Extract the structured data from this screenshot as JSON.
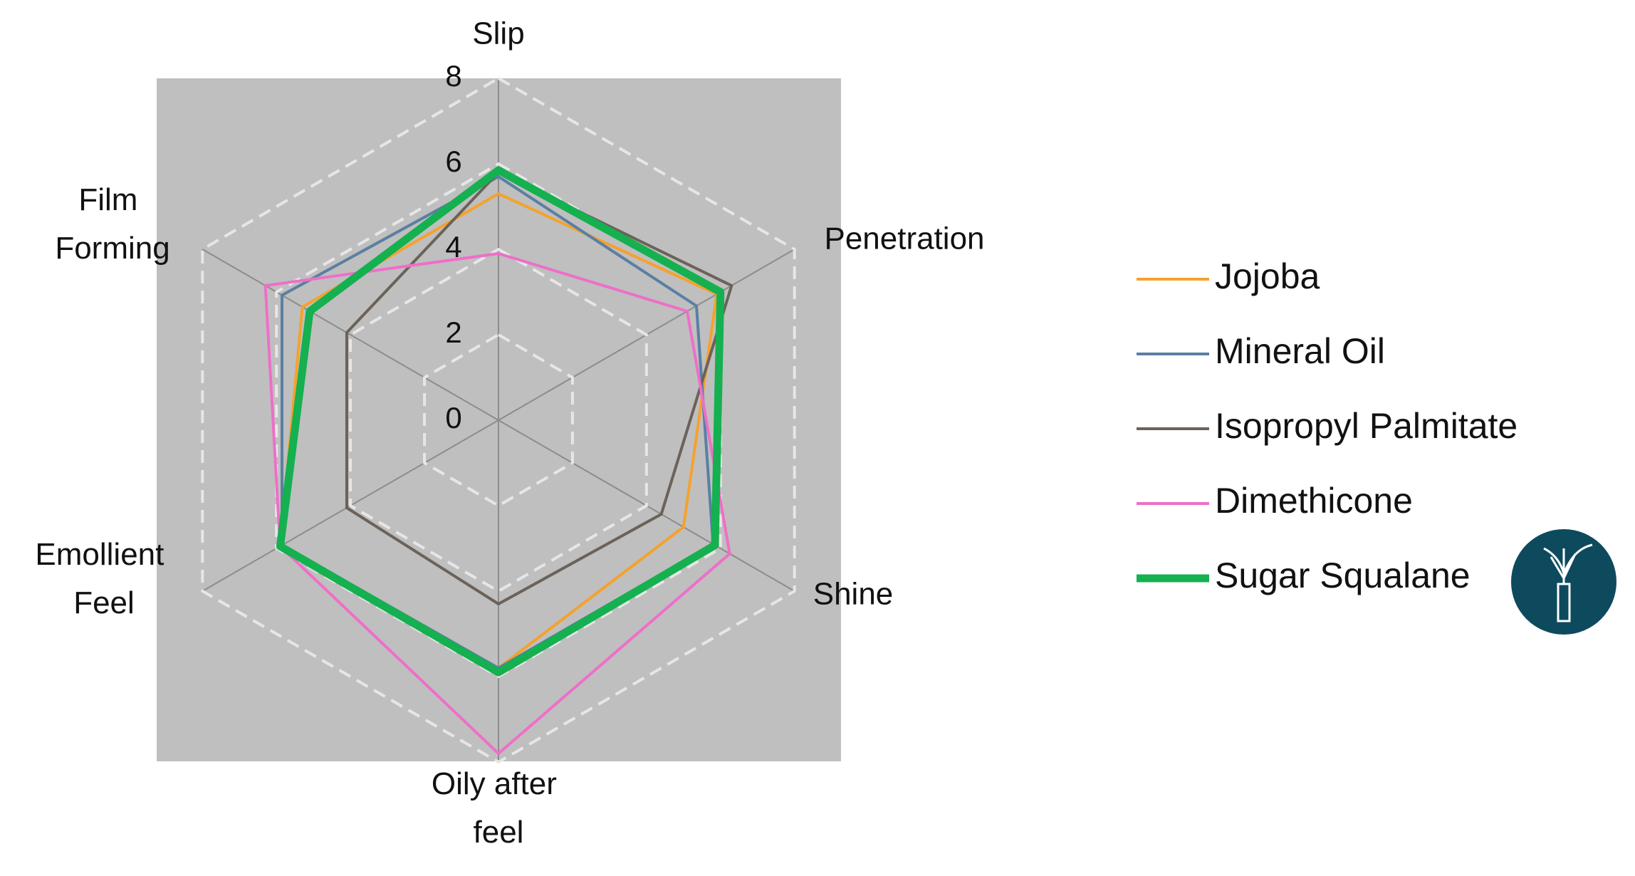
{
  "chart_data": {
    "type": "radar",
    "categories": [
      "Slip",
      "Penetration",
      "Shine",
      "Oily after feel",
      "Emollient Feel",
      "Film Forming"
    ],
    "rlim": [
      0,
      8
    ],
    "rticks": [
      0,
      2,
      4,
      6,
      8
    ],
    "grid": true,
    "legend": "right",
    "series": [
      {
        "name": "Jojoba",
        "color": "#f4a22d",
        "values": [
          5.3,
          5.9,
          5.0,
          5.8,
          5.9,
          5.3
        ]
      },
      {
        "name": "Mineral Oil",
        "color": "#5a7fa3",
        "values": [
          5.7,
          5.35,
          5.8,
          5.8,
          5.85,
          5.85
        ]
      },
      {
        "name": "Isopropyl Palmitate",
        "color": "#6b625a",
        "values": [
          5.8,
          6.3,
          4.4,
          4.3,
          4.1,
          4.1
        ]
      },
      {
        "name": "Dimethicone",
        "color": "#ee6fc8",
        "values": [
          3.9,
          5.1,
          6.25,
          7.8,
          5.9,
          6.3
        ]
      },
      {
        "name": "Sugar Squalane",
        "color": "#15b050",
        "values": [
          5.85,
          6.0,
          5.85,
          5.9,
          5.9,
          5.1
        ]
      }
    ]
  }
}
